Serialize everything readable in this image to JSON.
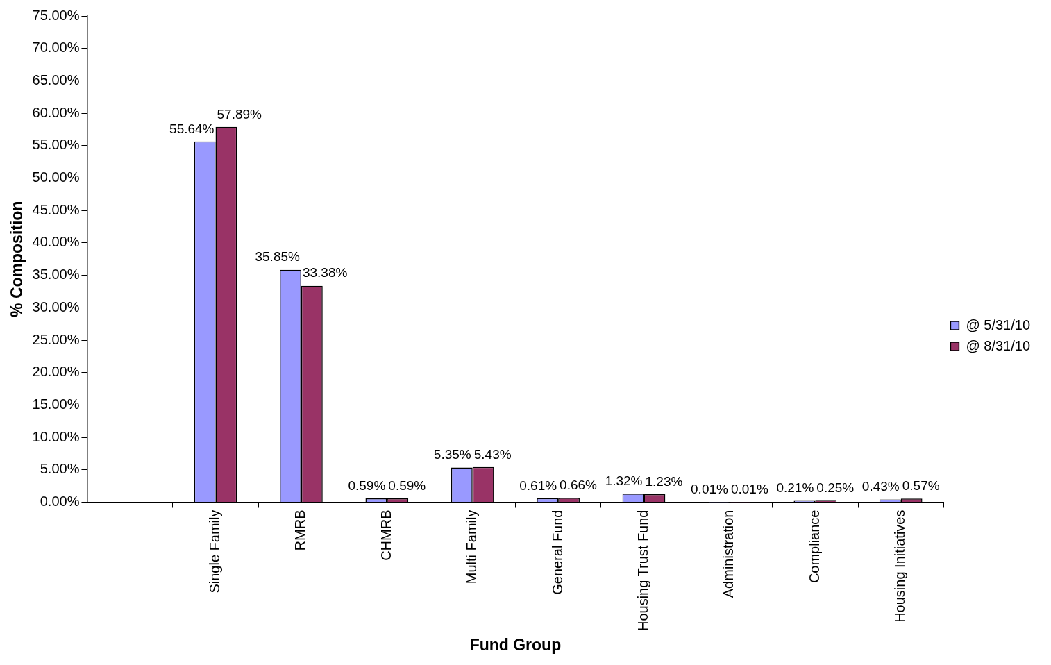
{
  "chart_data": {
    "type": "bar",
    "xlabel": "Fund Group",
    "ylabel": "% Composition",
    "categories": [
      null,
      "Single Family",
      "RMRB",
      "CHMRB",
      "Multi Family",
      "General Fund",
      "Housing Trust Fund",
      "Administration",
      "Compliance",
      "Housing Initiatives"
    ],
    "series": [
      {
        "name": "@ 5/31/10",
        "color": "#9999ff",
        "values": [
          null,
          55.64,
          35.85,
          0.59,
          5.35,
          0.61,
          1.32,
          0.01,
          0.21,
          0.43
        ],
        "value_labels": [
          null,
          "55.64%",
          "35.85%",
          "0.59%",
          "5.35%",
          "0.61%",
          "1.32%",
          "0.01%",
          "0.21%",
          "0.43%"
        ]
      },
      {
        "name": "@ 8/31/10",
        "color": "#993366",
        "values": [
          null,
          57.89,
          33.38,
          0.59,
          5.43,
          0.66,
          1.23,
          0.01,
          0.25,
          0.57
        ],
        "value_labels": [
          null,
          "57.89%",
          "33.38%",
          "0.59%",
          "5.43%",
          "0.66%",
          "1.23%",
          "0.01%",
          "0.25%",
          "0.57%"
        ]
      }
    ],
    "ylim": [
      0,
      75
    ],
    "yticks": [
      {
        "value": 0,
        "label": "0.00%"
      },
      {
        "value": 5,
        "label": "5.00%"
      },
      {
        "value": 10,
        "label": "10.00%"
      },
      {
        "value": 15,
        "label": "15.00%"
      },
      {
        "value": 20,
        "label": "20.00%"
      },
      {
        "value": 25,
        "label": "25.00%"
      },
      {
        "value": 30,
        "label": "30.00%"
      },
      {
        "value": 35,
        "label": "35.00%"
      },
      {
        "value": 40,
        "label": "40.00%"
      },
      {
        "value": 45,
        "label": "45.00%"
      },
      {
        "value": 50,
        "label": "50.00%"
      },
      {
        "value": 55,
        "label": "55.00%"
      },
      {
        "value": 60,
        "label": "60.00%"
      },
      {
        "value": 65,
        "label": "65.00%"
      },
      {
        "value": 70,
        "label": "70.00%"
      },
      {
        "value": 75,
        "label": "75.00%"
      }
    ],
    "grid": false,
    "legend": "right"
  }
}
